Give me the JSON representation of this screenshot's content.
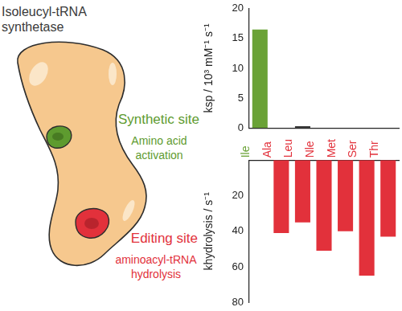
{
  "diagram": {
    "title": [
      "Isoleucyl-tRNA",
      "synthetase"
    ],
    "sites": [
      {
        "name": "Synthetic site",
        "description": [
          "Amino acid",
          "activation"
        ],
        "color": "#5e9b2f"
      },
      {
        "name": "Editing site",
        "description": [
          "aminoacyl-tRNA",
          "hydrolysis"
        ],
        "color": "#e2313b"
      }
    ]
  },
  "chart_data": [
    {
      "type": "bar",
      "y_label": "ksp / 10³ mM⁻¹ s⁻¹",
      "categories": [
        "Ile",
        "Ala",
        "Leu",
        "Nle",
        "Met",
        "Ser",
        "Thr"
      ],
      "values": [
        16.5,
        null,
        0.3,
        null,
        null,
        null,
        null
      ],
      "colors": [
        "#6aa236",
        "#e2313b",
        "#3d3d3d",
        "#e2313b",
        "#e2313b",
        "#e2313b",
        "#e2313b"
      ],
      "ylim": [
        0,
        20
      ],
      "yticks": [
        0,
        5,
        10,
        15,
        20
      ],
      "grid": false,
      "tick_labels": "y"
    },
    {
      "type": "bar",
      "y_label": "khydrolysis / s⁻¹",
      "categories": [
        "Ile",
        "Ala",
        "Leu",
        "Nle",
        "Met",
        "Ser",
        "Thr"
      ],
      "values": [
        null,
        41,
        35,
        51,
        40,
        65,
        43
      ],
      "colors": [
        "#6aa236",
        "#e2313b",
        "#e2313b",
        "#e2313b",
        "#e2313b",
        "#e2313b",
        "#e2313b"
      ],
      "ylim": [
        0,
        80
      ],
      "yticks": [
        20,
        40,
        60,
        80
      ],
      "grid": false
    }
  ]
}
